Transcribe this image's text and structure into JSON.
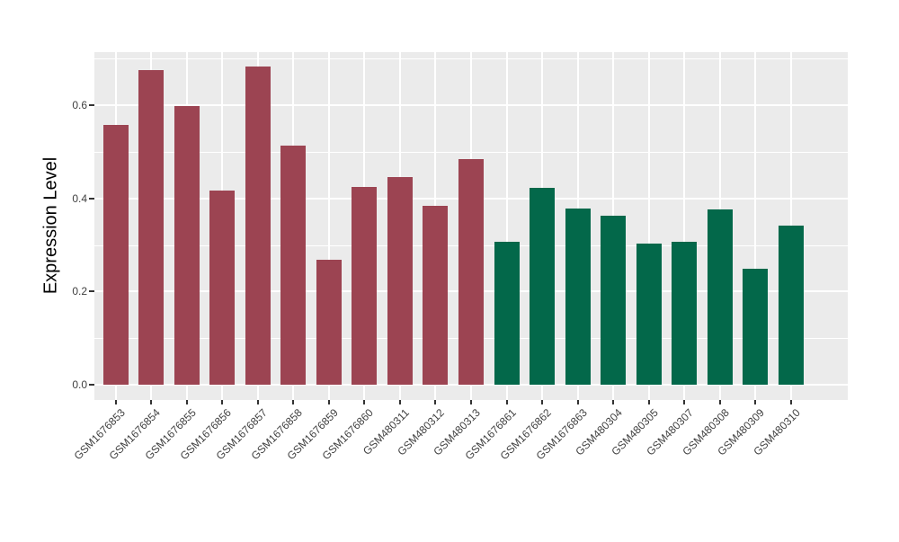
{
  "chart_data": {
    "type": "bar",
    "title": "",
    "xlabel": "",
    "ylabel": "Expression Level",
    "ylim": [
      0,
      0.72
    ],
    "yticks": [
      0.0,
      0.2,
      0.4,
      0.6
    ],
    "ytick_labels": [
      "0.0",
      "0.2",
      "0.4",
      "0.6"
    ],
    "minor_gridlines": [
      0.1,
      0.3,
      0.5,
      0.7
    ],
    "grid": "on",
    "legend_position": "none",
    "panel_bg": "#EBEBEB",
    "gridline_color": "#FFFFFF",
    "categories": [
      "GSM1676853",
      "GSM1676854",
      "GSM1676855",
      "GSM1676856",
      "GSM1676857",
      "GSM1676858",
      "GSM1676859",
      "GSM1676860",
      "GSM480311",
      "GSM480312",
      "GSM480313",
      "GSM1676861",
      "GSM1676862",
      "GSM1676863",
      "GSM480304",
      "GSM480305",
      "GSM480307",
      "GSM480308",
      "GSM480309",
      "GSM480310"
    ],
    "values": [
      0.558,
      0.676,
      0.599,
      0.417,
      0.683,
      0.514,
      0.268,
      0.424,
      0.445,
      0.383,
      0.484,
      0.306,
      0.422,
      0.378,
      0.363,
      0.303,
      0.307,
      0.376,
      0.249,
      0.342
    ],
    "bar_groups": [
      "maroon",
      "maroon",
      "maroon",
      "maroon",
      "maroon",
      "maroon",
      "maroon",
      "maroon",
      "maroon",
      "maroon",
      "maroon",
      "green",
      "green",
      "green",
      "green",
      "green",
      "green",
      "green",
      "green",
      "green"
    ],
    "group_colors": {
      "maroon": "#9C4452",
      "green": "#03684A"
    }
  }
}
